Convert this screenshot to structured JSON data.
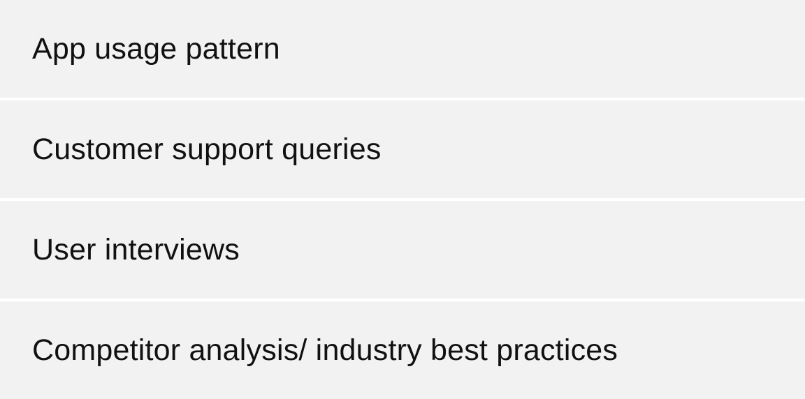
{
  "options": {
    "items": [
      {
        "label": "App usage pattern"
      },
      {
        "label": "Customer support queries"
      },
      {
        "label": "User interviews"
      },
      {
        "label": "Competitor analysis/ industry best practices"
      }
    ]
  }
}
